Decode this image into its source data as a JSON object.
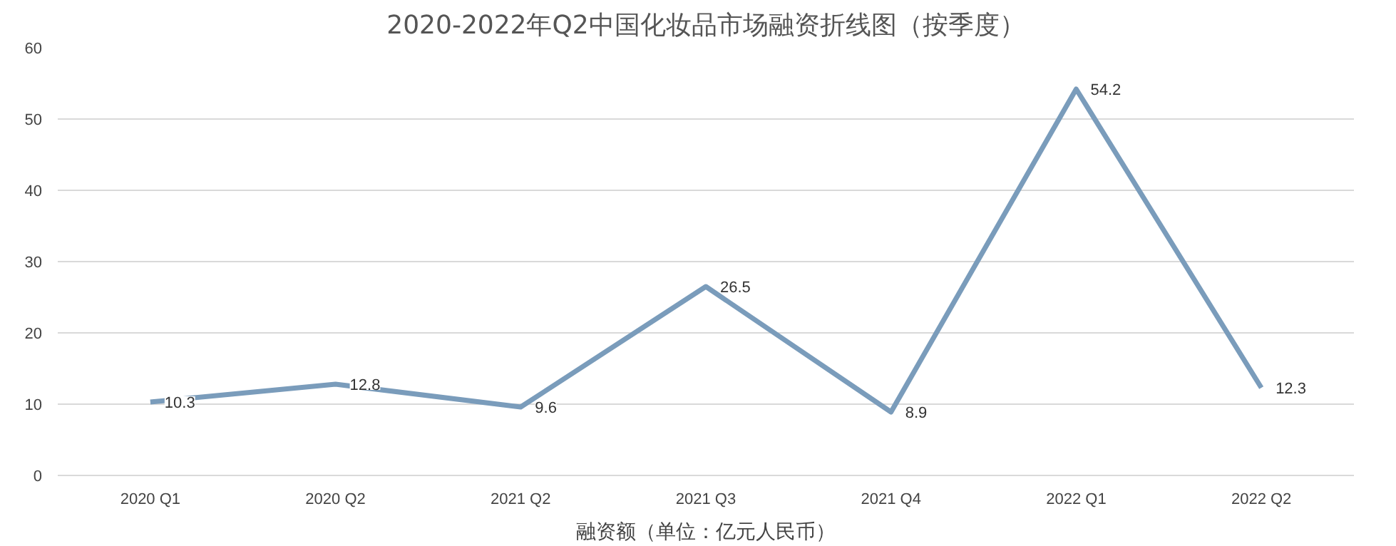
{
  "chart_data": {
    "type": "line",
    "title": "2020-2022年Q2中国化妆品市场融资折线图（按季度）",
    "xlabel": "融资额（单位：亿元人民币）",
    "categories": [
      "2020 Q1",
      "2020 Q2",
      "2021 Q2",
      "2021 Q3",
      "2021 Q4",
      "2022 Q1",
      "2022 Q2"
    ],
    "series": [
      {
        "color": "#7a9cbb",
        "values": [
          10.3,
          12.8,
          9.6,
          26.5,
          8.9,
          54.2,
          12.3
        ]
      }
    ],
    "ylim": [
      0,
      60
    ],
    "yticks": [
      0,
      10,
      20,
      30,
      40,
      50,
      60
    ],
    "grid": "y",
    "data_labels": true,
    "marker": "none",
    "line_style": "solid"
  }
}
